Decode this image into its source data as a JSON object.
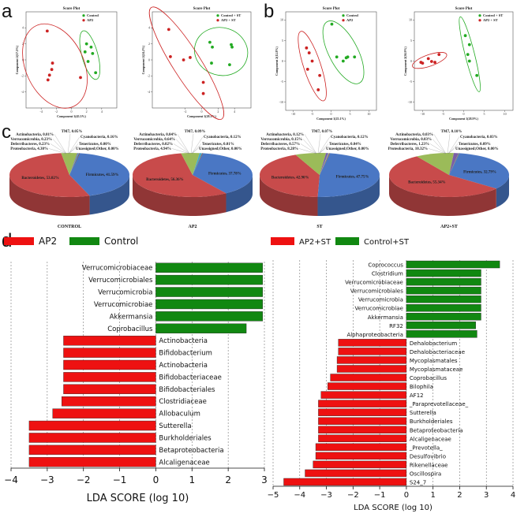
{
  "panel_labels": {
    "a": "a",
    "b": "b",
    "c": "c",
    "d": "d"
  },
  "chart_data": [
    {
      "id": "a1",
      "type": "scatter",
      "title": "Score Plot",
      "xlabel": "Component 1(45.3%)",
      "ylabel": "Component 2(17.5%)",
      "xlim": [
        -6,
        6
      ],
      "ylim": [
        -6,
        6
      ],
      "xticks": [
        "-4",
        "-2",
        "0",
        "2",
        "4"
      ],
      "yticks": [
        "-4",
        "-2",
        "0",
        "2",
        "4"
      ],
      "series": [
        {
          "name": "Control",
          "color": "#22aa22",
          "points": [
            [
              2.0,
              2.0
            ],
            [
              2.6,
              1.6
            ],
            [
              1.8,
              1.0
            ],
            [
              2.8,
              0.8
            ],
            [
              2.2,
              -0.2
            ],
            [
              3.2,
              -1.6
            ]
          ]
        },
        {
          "name": "AP2",
          "color": "#cc2222",
          "points": [
            [
              -3.2,
              3.6
            ],
            [
              -2.5,
              -0.4
            ],
            [
              -2.6,
              -1.2
            ],
            [
              -2.9,
              -1.9
            ],
            [
              -3.1,
              -2.5
            ],
            [
              1.2,
              -2.2
            ]
          ]
        }
      ]
    },
    {
      "id": "a2",
      "type": "scatter",
      "title": "Score Plot",
      "xlabel": "Component 1(28.1%)",
      "ylabel": "Component 2(24.2%)",
      "xlim": [
        -6,
        6
      ],
      "ylim": [
        -6,
        6
      ],
      "xticks": [
        "-2",
        "0",
        "2",
        "4"
      ],
      "yticks": [
        "-4",
        "-2",
        "0",
        "2",
        "4"
      ],
      "series": [
        {
          "name": "Control + ST",
          "color": "#22aa22",
          "points": [
            [
              1.0,
              2.2
            ],
            [
              1.3,
              1.6
            ],
            [
              1.2,
              -0.4
            ],
            [
              3.6,
              1.9
            ],
            [
              3.7,
              1.6
            ],
            [
              3.4,
              -0.6
            ]
          ]
        },
        {
          "name": "AP2 + ST",
          "color": "#cc2222",
          "points": [
            [
              -4.0,
              3.8
            ],
            [
              -3.8,
              0.4
            ],
            [
              -2.2,
              0.0
            ],
            [
              -1.4,
              0.3
            ],
            [
              0.2,
              -2.8
            ],
            [
              0.2,
              -4.2
            ]
          ]
        }
      ]
    },
    {
      "id": "b1",
      "type": "scatter",
      "title": "Score Plot",
      "xlabel": "Component 1(25.1%)",
      "ylabel": "Component 2(12.8%)",
      "xlim": [
        -12,
        12
      ],
      "ylim": [
        -12,
        12
      ],
      "xticks": [
        "-10",
        "-5",
        "0",
        "5",
        "10"
      ],
      "yticks": [
        "-10",
        "-5",
        "0",
        "5",
        "10"
      ],
      "series": [
        {
          "name": "Control",
          "color": "#22aa22",
          "points": [
            [
              0.2,
              9.0
            ],
            [
              1.5,
              1.0
            ],
            [
              4.0,
              0.8
            ],
            [
              4.4,
              1.0
            ],
            [
              6.2,
              1.0
            ],
            [
              3.2,
              0.0
            ]
          ]
        },
        {
          "name": "AP2",
          "color": "#cc2222",
          "points": [
            [
              -6.5,
              3.2
            ],
            [
              -5.8,
              2.0
            ],
            [
              -5.0,
              0.0
            ],
            [
              -6.2,
              -2.0
            ],
            [
              -3.0,
              -3.5
            ],
            [
              -3.4,
              -7.0
            ]
          ]
        }
      ]
    },
    {
      "id": "b2",
      "type": "scatter",
      "title": "Score Plot",
      "xlabel": "Component 1(28.9%)",
      "ylabel": "Component 2(36.9%)",
      "xlim": [
        -12,
        12
      ],
      "ylim": [
        -12,
        12
      ],
      "xticks": [
        "-10",
        "-5",
        "0",
        "5",
        "10"
      ],
      "yticks": [
        "-10",
        "-5",
        "0",
        "5",
        "10"
      ],
      "series": [
        {
          "name": "Control + ST",
          "color": "#22aa22",
          "points": [
            [
              0.4,
              6.2
            ],
            [
              1.4,
              4.0
            ],
            [
              1.0,
              1.6
            ],
            [
              1.4,
              0.0
            ],
            [
              3.2,
              -3.5
            ]
          ]
        },
        {
          "name": "AP2 + ST",
          "color": "#cc2222",
          "points": [
            [
              -10.0,
              -0.5
            ],
            [
              -8.6,
              0.6
            ],
            [
              -7.8,
              -0.1
            ],
            [
              -7.0,
              -0.3
            ],
            [
              -6.0,
              1.6
            ],
            [
              -10.4,
              -0.3
            ]
          ]
        }
      ]
    },
    {
      "id": "c1",
      "type": "pie",
      "name": "CONTROL",
      "slices": [
        {
          "label": "Firmicutes",
          "value": 41.59,
          "text": "Firmicutes, 41.59%",
          "color": "#4a77c4"
        },
        {
          "label": "Bacteroidetes",
          "value": 53.02,
          "text": "Bacteroidetes, 53.02%",
          "color": "#c84b4b"
        },
        {
          "label": "Proteobacteria",
          "value": 4.3,
          "text": "Proteobacteria, 4.30%",
          "color": "#9bbb59"
        },
        {
          "label": "Deferribacteres",
          "value": 0.23,
          "text": "Deferribacteres, 0.23%",
          "color": "#7b5ea7"
        },
        {
          "label": "Verrucomicrobia",
          "value": 0.23,
          "text": "Verrucomicrobia, 0.23%",
          "color": "#46aac6"
        },
        {
          "label": "Actinobacteria",
          "value": 0.01,
          "text": "Actinobacteria, 0.01%",
          "color": "#f79646"
        },
        {
          "label": "TM7",
          "value": 0.05,
          "text": "TM7, 0.05%",
          "color": "#2c4d75"
        },
        {
          "label": "Cyanobacteria",
          "value": 0.16,
          "text": "Cyanobacteria, 0.16%",
          "color": "#772c2a"
        },
        {
          "label": "Tenericutes",
          "value": 0.0,
          "text": "Tenericutes, 0.00%",
          "color": "#5f7530"
        },
        {
          "label": "Unassigned;Other",
          "value": 0.0,
          "text": "Unassigned;Other, 0.00%",
          "color": "#4d3b62"
        }
      ]
    },
    {
      "id": "c2",
      "type": "pie",
      "name": "AP2",
      "slices": [
        {
          "label": "Firmicutes",
          "value": 37.78,
          "text": "Firmicutes, 37.78%",
          "color": "#4a77c4"
        },
        {
          "label": "Bacteroidetes",
          "value": 56.36,
          "text": "Bacteroidetes, 56.36%",
          "color": "#c84b4b"
        },
        {
          "label": "Proteobacteria",
          "value": 4.94,
          "text": "Proteobacteria, 4.94%",
          "color": "#9bbb59"
        },
        {
          "label": "Deferribacteres",
          "value": 0.02,
          "text": "Deferribacteres, 0.02%",
          "color": "#7b5ea7"
        },
        {
          "label": "Verrucomicrobia",
          "value": 0.64,
          "text": "Verrucomicrobia, 0.64%",
          "color": "#46aac6"
        },
        {
          "label": "Actinobacteria",
          "value": 0.04,
          "text": "Actinobacteria, 0.04%",
          "color": "#f79646"
        },
        {
          "label": "TM7",
          "value": 0.09,
          "text": "TM7, 0.09%",
          "color": "#2c4d75"
        },
        {
          "label": "Cyanobacteria",
          "value": 0.12,
          "text": "Cyanobacteria, 0.12%",
          "color": "#772c2a"
        },
        {
          "label": "Tenericutes",
          "value": 0.01,
          "text": "Tenericutes, 0.01%",
          "color": "#5f7530"
        },
        {
          "label": "Unassigned;Other",
          "value": 0.0,
          "text": "Unassigned;Other, 0.00%",
          "color": "#4d3b62"
        }
      ]
    },
    {
      "id": "c3",
      "type": "pie",
      "name": "ST",
      "slices": [
        {
          "label": "Firmicutes",
          "value": 47.75,
          "text": "Firmicutes, 47.75%",
          "color": "#4a77c4"
        },
        {
          "label": "Bacteroidetes",
          "value": 42.9,
          "text": "Bacteroidetes, 42.90%",
          "color": "#c84b4b"
        },
        {
          "label": "Proteobacteria",
          "value": 8.28,
          "text": "Proteobacteria, 8.28%",
          "color": "#9bbb59"
        },
        {
          "label": "Deferribacteres",
          "value": 0.57,
          "text": "Deferribacteres, 0.57%",
          "color": "#7b5ea7"
        },
        {
          "label": "Verrucomicrobia",
          "value": 0.15,
          "text": "Verrucomicrobia, 0.15%",
          "color": "#46aac6"
        },
        {
          "label": "Actinobacteria",
          "value": 0.12,
          "text": "Actinobacteria, 0.12%",
          "color": "#f79646"
        },
        {
          "label": "TM7",
          "value": 0.07,
          "text": "TM7, 0.07%",
          "color": "#2c4d75"
        },
        {
          "label": "Cyanobacteria",
          "value": 0.12,
          "text": "Cyanobacteria, 0.12%",
          "color": "#772c2a"
        },
        {
          "label": "Tenericutes",
          "value": 0.04,
          "text": "Tenericutes, 0.04%",
          "color": "#5f7530"
        },
        {
          "label": "Unassigned;Other",
          "value": 0.0,
          "text": "Unassigned;Other, 0.00%",
          "color": "#4d3b62"
        }
      ]
    },
    {
      "id": "c4",
      "type": "pie",
      "name": "AP2+ST",
      "slices": [
        {
          "label": "Firmicutes",
          "value": 32.79,
          "text": "Firmicutes, 32.79%",
          "color": "#4a77c4"
        },
        {
          "label": "Bacteroidetes",
          "value": 55.34,
          "text": "Bacteroidetes, 55.34%",
          "color": "#c84b4b"
        },
        {
          "label": "Proteobacteria",
          "value": 10.32,
          "text": "Proteobacteria, 10.32%",
          "color": "#9bbb59"
        },
        {
          "label": "Deferribacteres",
          "value": 1.23,
          "text": "Deferribacteres, 1.23%",
          "color": "#7b5ea7"
        },
        {
          "label": "Verrucomicrobia",
          "value": 0.03,
          "text": "Verrucomicrobia, 0.03%",
          "color": "#46aac6"
        },
        {
          "label": "Actinobacteria",
          "value": 0.03,
          "text": "Actinobacteria, 0.03%",
          "color": "#f79646"
        },
        {
          "label": "TM7",
          "value": 0.1,
          "text": "TM7, 0.10%",
          "color": "#2c4d75"
        },
        {
          "label": "Cyanobacteria",
          "value": 0.03,
          "text": "Cyanobacteria, 0.03%",
          "color": "#772c2a"
        },
        {
          "label": "Tenericutes",
          "value": 0.09,
          "text": "Tenericutes, 0.09%",
          "color": "#5f7530"
        },
        {
          "label": "Unassigned;Other",
          "value": 0.0,
          "text": "Unassigned;Other, 0.00%",
          "color": "#4d3b62"
        }
      ]
    },
    {
      "id": "d1",
      "type": "bar",
      "orientation": "horizontal",
      "xlabel": "LDA SCORE (log 10)",
      "xlim": [
        -4,
        3
      ],
      "xticks": [
        "−4",
        "−3",
        "−2",
        "−1",
        "0",
        "1",
        "2",
        "3"
      ],
      "legend": [
        {
          "name": "AP2",
          "color": "#ee1111"
        },
        {
          "name": "Control",
          "color": "#118811"
        }
      ],
      "bars": [
        {
          "taxon": "Verrucomicrobiaceae",
          "value": 2.95,
          "group": "Control"
        },
        {
          "taxon": "Verrucomicrobiales",
          "value": 2.95,
          "group": "Control"
        },
        {
          "taxon": "Verrucomicrobia",
          "value": 2.95,
          "group": "Control"
        },
        {
          "taxon": "Verrucomicrobiae",
          "value": 2.95,
          "group": "Control"
        },
        {
          "taxon": "Akkermansia",
          "value": 2.95,
          "group": "Control"
        },
        {
          "taxon": "Coprobacillus",
          "value": 2.5,
          "group": "Control"
        },
        {
          "taxon": "Actinobacteria",
          "value": -2.55,
          "group": "AP2"
        },
        {
          "taxon": "Bifidobacterium",
          "value": -2.55,
          "group": "AP2"
        },
        {
          "taxon": "Actinobacteria",
          "value": -2.55,
          "group": "AP2"
        },
        {
          "taxon": "Bifidobacteriaceae",
          "value": -2.55,
          "group": "AP2"
        },
        {
          "taxon": "Bifidobacteriales",
          "value": -2.55,
          "group": "AP2"
        },
        {
          "taxon": "Clostridiaceae",
          "value": -2.6,
          "group": "AP2"
        },
        {
          "taxon": "Allobaculum",
          "value": -2.85,
          "group": "AP2"
        },
        {
          "taxon": "Sutterella",
          "value": -3.5,
          "group": "AP2"
        },
        {
          "taxon": "Burkholderiales",
          "value": -3.5,
          "group": "AP2"
        },
        {
          "taxon": "Betaproteobacteria",
          "value": -3.5,
          "group": "AP2"
        },
        {
          "taxon": "Alcaligenaceae",
          "value": -3.5,
          "group": "AP2"
        }
      ]
    },
    {
      "id": "d2",
      "type": "bar",
      "orientation": "horizontal",
      "xlabel": "LDA SCORE (log 10)",
      "xlim": [
        -5,
        4
      ],
      "xticks": [
        "−5",
        "−4",
        "−3",
        "−2",
        "−1",
        "0",
        "1",
        "2",
        "3",
        "4"
      ],
      "legend": [
        {
          "name": "AP2+ST",
          "color": "#ee1111"
        },
        {
          "name": "Control+ST",
          "color": "#118811"
        }
      ],
      "bars": [
        {
          "taxon": "Coprococcus",
          "value": 3.5,
          "group": "Control+ST"
        },
        {
          "taxon": "Clostridium",
          "value": 2.8,
          "group": "Control+ST"
        },
        {
          "taxon": "Verrucomicrobiaceae",
          "value": 2.8,
          "group": "Control+ST"
        },
        {
          "taxon": "Verrucomicrobiales",
          "value": 2.8,
          "group": "Control+ST"
        },
        {
          "taxon": "Verrucomicrobia",
          "value": 2.8,
          "group": "Control+ST"
        },
        {
          "taxon": "Verrucomicrobiae",
          "value": 2.8,
          "group": "Control+ST"
        },
        {
          "taxon": "Akkermansia",
          "value": 2.8,
          "group": "Control+ST"
        },
        {
          "taxon": "RF32",
          "value": 2.6,
          "group": "Control+ST"
        },
        {
          "taxon": "Alphaproteobacteria",
          "value": 2.65,
          "group": "Control+ST"
        },
        {
          "taxon": "Dehalobacterium",
          "value": -2.55,
          "group": "AP2+ST"
        },
        {
          "taxon": "Dehalobacteriaceae",
          "value": -2.55,
          "group": "AP2+ST"
        },
        {
          "taxon": "Mycoplasmatales",
          "value": -2.6,
          "group": "AP2+ST"
        },
        {
          "taxon": "Mycoplasmataceae",
          "value": -2.6,
          "group": "AP2+ST"
        },
        {
          "taxon": "Coprobacillus",
          "value": -2.85,
          "group": "AP2+ST"
        },
        {
          "taxon": "Bilophila",
          "value": -2.95,
          "group": "AP2+ST"
        },
        {
          "taxon": "AF12",
          "value": -3.2,
          "group": "AP2+ST"
        },
        {
          "taxon": "_Paraprevotellaceae_",
          "value": -3.3,
          "group": "AP2+ST"
        },
        {
          "taxon": "Sutterella",
          "value": -3.3,
          "group": "AP2+ST"
        },
        {
          "taxon": "Burkholderiales",
          "value": -3.3,
          "group": "AP2+ST"
        },
        {
          "taxon": "Betaproteobacteria",
          "value": -3.3,
          "group": "AP2+ST"
        },
        {
          "taxon": "Alcaligenaceae",
          "value": -3.3,
          "group": "AP2+ST"
        },
        {
          "taxon": "_Prevotella_",
          "value": -3.4,
          "group": "AP2+ST"
        },
        {
          "taxon": "Desulfovibrio",
          "value": -3.4,
          "group": "AP2+ST"
        },
        {
          "taxon": "Rikenellaceae",
          "value": -3.5,
          "group": "AP2+ST"
        },
        {
          "taxon": "Oscillospira",
          "value": -3.8,
          "group": "AP2+ST"
        },
        {
          "taxon": "S24_7",
          "value": -4.6,
          "group": "AP2+ST"
        }
      ]
    }
  ]
}
